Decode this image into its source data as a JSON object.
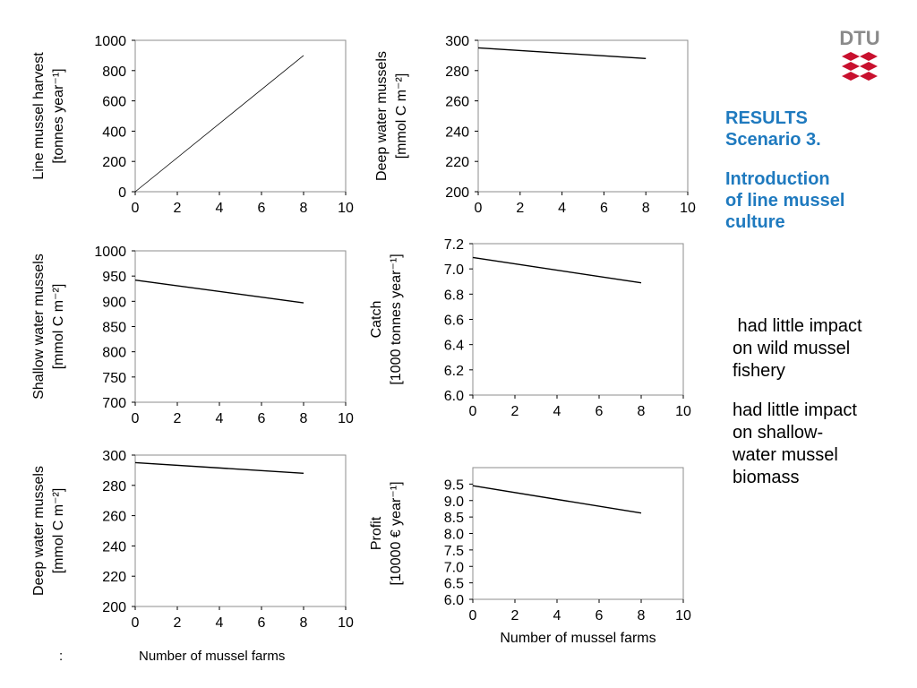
{
  "slide": {
    "heading_line1": "RESULTS",
    "heading_line2": "Scenario 3.",
    "subheading_line1": "Introduction",
    "subheading_line2": "of line mussel",
    "subheading_line3": "culture",
    "note1_line1": " had little impact",
    "note1_line2": "on wild mussel",
    "note1_line3": "fishery",
    "note2_line1": "had little impact",
    "note2_line2": "on shallow-",
    "note2_line3": "water mussel",
    "note2_line4": "biomass",
    "bottom_colon": ":",
    "bottom_xlabel": "Number of mussel farms",
    "logo_text": "DTU",
    "colors": {
      "accent": "#1f7abf",
      "logo_red": "#c8102e",
      "logo_gray": "#8a8a8a"
    }
  },
  "chart_data": [
    {
      "type": "line",
      "ylabel_lines": [
        "Line mussel harvest",
        "[tonnes year⁻¹]"
      ],
      "xlabel": "",
      "xlim": [
        0,
        10
      ],
      "xticks": [
        "0",
        "2",
        "4",
        "6",
        "8",
        "10"
      ],
      "ylim": [
        0,
        1000
      ],
      "yticks": [
        "0",
        "200",
        "400",
        "600",
        "800",
        "1000"
      ],
      "series": [
        {
          "x": [
            0,
            8
          ],
          "y": [
            0,
            900
          ]
        }
      ],
      "grid": false
    },
    {
      "type": "line",
      "ylabel_lines": [
        "Deep water mussels",
        "[mmol C m⁻²]"
      ],
      "xlabel": "",
      "xlim": [
        0,
        10
      ],
      "xticks": [
        "0",
        "2",
        "4",
        "6",
        "8",
        "10"
      ],
      "ylim": [
        200,
        300
      ],
      "yticks": [
        "200",
        "220",
        "240",
        "260",
        "280",
        "300"
      ],
      "series": [
        {
          "x": [
            0,
            8
          ],
          "y": [
            295,
            288
          ]
        }
      ],
      "grid": false
    },
    {
      "type": "line",
      "ylabel_lines": [
        "Shallow water mussels",
        "[mmol C m⁻²]"
      ],
      "xlabel": "",
      "xlim": [
        0,
        10
      ],
      "xticks": [
        "0",
        "2",
        "4",
        "6",
        "8",
        "10"
      ],
      "ylim": [
        700,
        1000
      ],
      "yticks": [
        "700",
        "750",
        "800",
        "850",
        "900",
        "950",
        "1000"
      ],
      "series": [
        {
          "x": [
            0,
            8
          ],
          "y": [
            942,
            897
          ]
        }
      ],
      "grid": false
    },
    {
      "type": "line",
      "ylabel_lines": [
        "Catch",
        "[1000 tonnes year⁻¹]"
      ],
      "xlabel": "",
      "xlim": [
        0,
        10
      ],
      "xticks": [
        "0",
        "2",
        "4",
        "6",
        "8",
        "10"
      ],
      "ylim": [
        6.0,
        7.2
      ],
      "yticks": [
        "6.0",
        "6.2",
        "6.4",
        "6.6",
        "6.8",
        "7.0",
        "7.2"
      ],
      "series": [
        {
          "x": [
            0,
            8
          ],
          "y": [
            7.09,
            6.89
          ]
        }
      ],
      "grid": false
    },
    {
      "type": "line",
      "ylabel_lines": [
        "Deep water mussels",
        "[mmol C m⁻²]"
      ],
      "xlabel": "",
      "xlim": [
        0,
        10
      ],
      "xticks": [
        "0",
        "2",
        "4",
        "6",
        "8",
        "10"
      ],
      "ylim": [
        200,
        300
      ],
      "yticks": [
        "200",
        "220",
        "240",
        "260",
        "280",
        "300"
      ],
      "series": [
        {
          "x": [
            0,
            8
          ],
          "y": [
            295,
            288
          ]
        }
      ],
      "grid": false
    },
    {
      "type": "line",
      "ylabel_lines": [
        "Profit",
        "[10000 € year⁻¹]"
      ],
      "xlabel": "Number of mussel farms",
      "xlim": [
        0,
        10
      ],
      "xticks": [
        "0",
        "2",
        "4",
        "6",
        "8",
        "10"
      ],
      "ylim": [
        6.0,
        10.0
      ],
      "yticks": [
        "6.0",
        "6.5",
        "7.0",
        "7.5",
        "8.0",
        "8.5",
        "9.0",
        "9.5"
      ],
      "series": [
        {
          "x": [
            0,
            8
          ],
          "y": [
            9.45,
            8.62
          ]
        }
      ],
      "grid": false
    }
  ]
}
